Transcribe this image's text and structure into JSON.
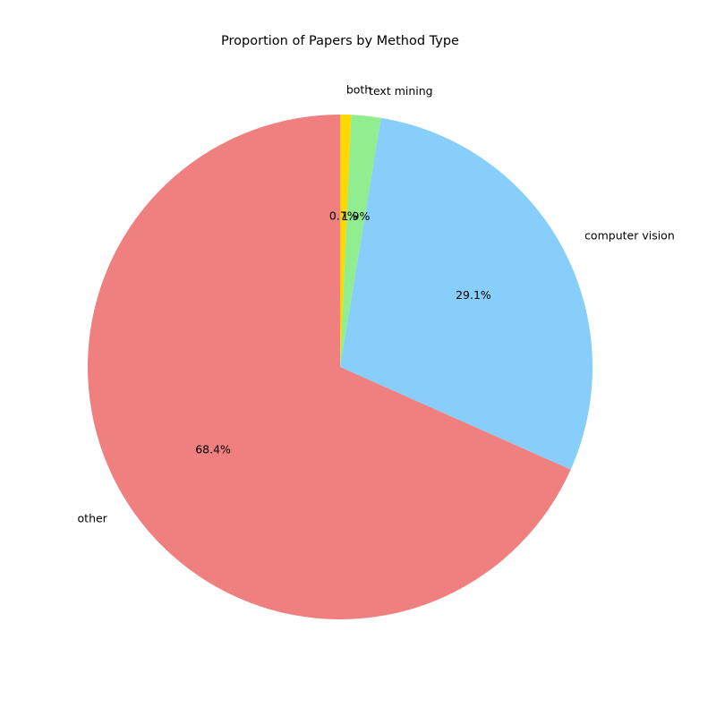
{
  "chart_data": {
    "type": "pie",
    "title": "Proportion of Papers by Method Type",
    "slices": [
      {
        "label": "both",
        "value": 0.7,
        "pct_label": "0.7%",
        "color": "#ffd700"
      },
      {
        "label": "text mining",
        "value": 1.9,
        "pct_label": "1.9%",
        "color": "#90ee90"
      },
      {
        "label": "computer vision",
        "value": 29.1,
        "pct_label": "29.1%",
        "color": "#87cefa"
      },
      {
        "label": "other",
        "value": 68.4,
        "pct_label": "68.4%",
        "color": "#f08080"
      }
    ],
    "start_angle_deg": 90,
    "direction": "clockwise",
    "legend": "none"
  }
}
